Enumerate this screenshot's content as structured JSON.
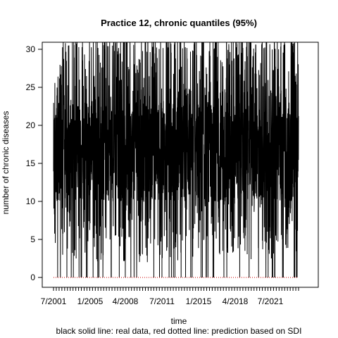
{
  "chart_data": {
    "type": "line",
    "title": "Practice 12, chronic quantiles (95%)",
    "xlabel": "time",
    "ylabel": "number of chronic diseases",
    "caption": "black solid line: real data, red dotted line: prediction based on SDI",
    "ylim": [
      0,
      30
    ],
    "y_ticks": [
      0,
      5,
      10,
      15,
      20,
      25,
      30
    ],
    "x_tick_labels": [
      "7/2001",
      "1/2005",
      "4/2008",
      "7/2011",
      "1/2015",
      "4/2018",
      "7/2021"
    ],
    "grid": false,
    "series": [
      {
        "name": "real data",
        "color": "#000000",
        "style": "solid",
        "summary": "daily counts oscillating dense between roughly 0 and 30; central band approximately 10 to 22",
        "range": [
          0,
          30
        ]
      },
      {
        "name": "prediction based on SDI",
        "color": "#cc0000",
        "style": "dotted",
        "values_constant": 0
      }
    ]
  }
}
